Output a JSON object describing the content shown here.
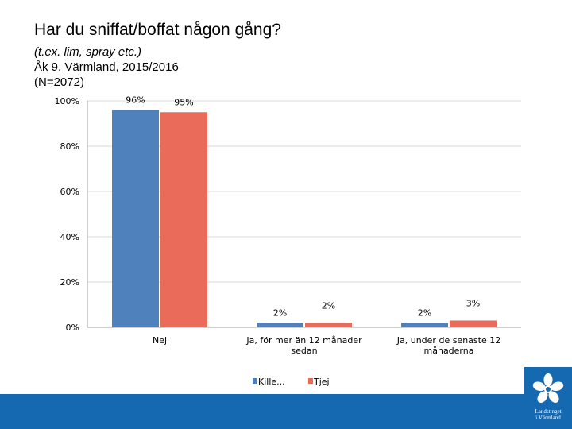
{
  "slide": {
    "title": "Har du sniffat/boffat någon gång?",
    "subtitle_lines": [
      "(t.ex. lim, spray etc.)",
      "Åk 9, Värmland, 2015/2016",
      "(N=2072)"
    ],
    "logo_text": [
      "Landstinget",
      "i Värmland"
    ]
  },
  "colors": {
    "series1": "#4f81bd",
    "series2": "#eb6b5a",
    "footer": "#1569b0"
  },
  "chart_data": {
    "type": "bar",
    "title": "Har du sniffat/boffat någon gång?",
    "categories": [
      [
        "Nej"
      ],
      [
        "Ja, för mer än 12 månader",
        "sedan"
      ],
      [
        "Ja, under de senaste 12",
        "månaderna"
      ]
    ],
    "series": [
      {
        "name": "Kille...",
        "values": [
          96,
          2,
          2
        ],
        "labels": [
          "96%",
          "2%",
          "2%"
        ]
      },
      {
        "name": "Tjej",
        "values": [
          95,
          2,
          3
        ],
        "labels": [
          "95%",
          "2%",
          "3%"
        ]
      }
    ],
    "ylim": [
      0,
      100
    ],
    "yticks": [
      0,
      20,
      40,
      60,
      80,
      100
    ],
    "ytick_labels": [
      "0%",
      "20%",
      "40%",
      "60%",
      "80%",
      "100%"
    ],
    "grid": true,
    "legend": "bottom"
  }
}
